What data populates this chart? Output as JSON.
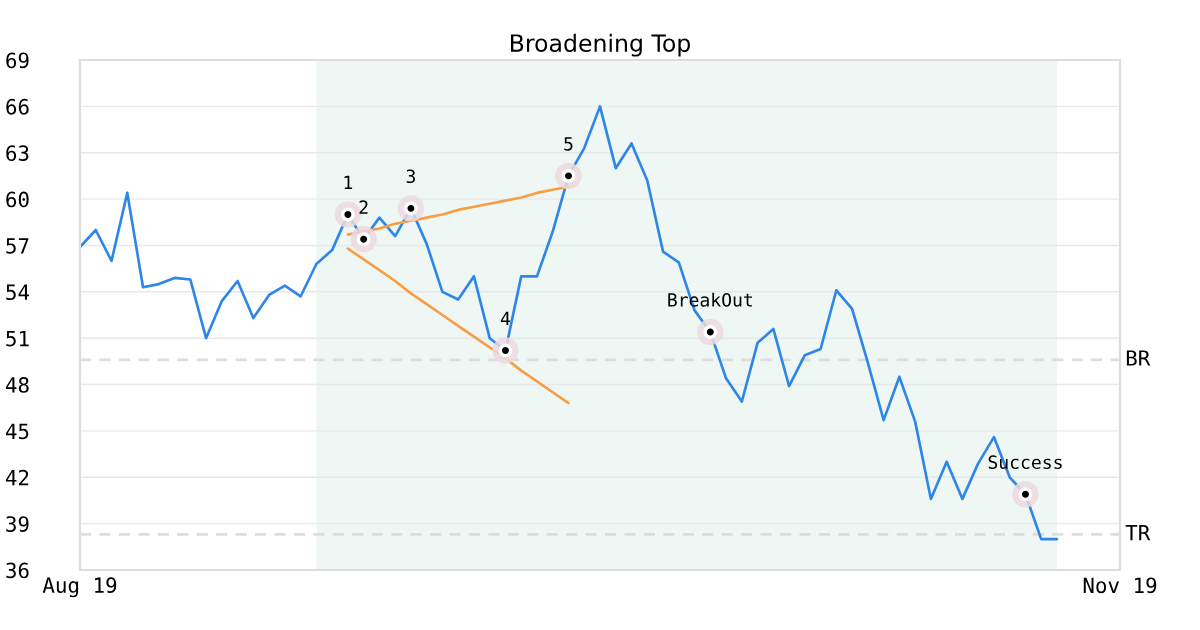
{
  "chart_data": {
    "type": "line",
    "title": "Broadening Top",
    "categories": [
      "Aug 19",
      null,
      null,
      null,
      null,
      null,
      null,
      null,
      null,
      null,
      null,
      null,
      null,
      null,
      null,
      null,
      null,
      null,
      null,
      null,
      null,
      null,
      null,
      null,
      null,
      null,
      null,
      null,
      null,
      null,
      null,
      null,
      null,
      null,
      null,
      null,
      null,
      null,
      null,
      null,
      null,
      null,
      null,
      null,
      null,
      null,
      null,
      null,
      null,
      null,
      null,
      null,
      null,
      null,
      null,
      null,
      null,
      null,
      null,
      null,
      null,
      null,
      null,
      null,
      null,
      null,
      "Nov 19"
    ],
    "ylim": [
      36,
      69
    ],
    "yticks": [
      36,
      39,
      42,
      45,
      48,
      51,
      54,
      57,
      60,
      63,
      66,
      69
    ],
    "grid": "y",
    "series": [
      {
        "color": "#2e86e8",
        "values": [
          56.9,
          58.0,
          56.0,
          60.4,
          54.3,
          54.5,
          54.9,
          54.8,
          51.0,
          53.4,
          54.7,
          52.3,
          53.8,
          54.4,
          53.7,
          55.8,
          56.7,
          59.0,
          57.4,
          58.8,
          57.6,
          59.4,
          57.1,
          54.0,
          53.5,
          55.0,
          51.0,
          50.2,
          55.0,
          55.0,
          57.9,
          61.5,
          63.3,
          66.0,
          62.0,
          63.6,
          61.2,
          56.6,
          55.9,
          52.8,
          51.4,
          48.4,
          46.9,
          50.7,
          51.6,
          47.9,
          49.9,
          50.3,
          54.1,
          52.9,
          49.4,
          45.7,
          48.5,
          45.6,
          40.6,
          43.0,
          40.6,
          42.9,
          44.6,
          42.0,
          40.9,
          38.0,
          38.0,
          null,
          null,
          null,
          null
        ]
      },
      {
        "type": "line",
        "color": "#f99d45",
        "values": [
          null,
          null,
          null,
          null,
          null,
          null,
          null,
          null,
          null,
          null,
          null,
          null,
          null,
          null,
          null,
          null,
          null,
          57.7,
          57.9,
          58.1,
          58.4,
          58.6,
          58.8,
          59.0,
          59.3,
          59.5,
          59.7,
          59.9,
          60.1,
          60.4,
          60.6,
          60.8,
          null,
          null,
          null,
          null,
          null,
          null,
          null,
          null,
          null,
          null,
          null,
          null,
          null,
          null,
          null,
          null,
          null,
          null,
          null,
          null,
          null,
          null,
          null,
          null,
          null,
          null,
          null,
          null,
          null,
          null,
          null,
          null,
          null,
          null,
          null
        ]
      },
      {
        "type": "line",
        "color": "#f99d45",
        "values": [
          null,
          null,
          null,
          null,
          null,
          null,
          null,
          null,
          null,
          null,
          null,
          null,
          null,
          null,
          null,
          null,
          null,
          56.8,
          56.1,
          55.4,
          54.7,
          53.9,
          53.2,
          52.5,
          51.8,
          51.1,
          50.4,
          49.7,
          48.9,
          48.2,
          47.5,
          46.8,
          null,
          null,
          null,
          null,
          null,
          null,
          null,
          null,
          null,
          null,
          null,
          null,
          null,
          null,
          null,
          null,
          null,
          null,
          null,
          null,
          null,
          null,
          null,
          null,
          null,
          null,
          null,
          null,
          null,
          null,
          null,
          null,
          null,
          null,
          null
        ]
      },
      {
        "type": "scatter",
        "color": "#000000",
        "marker": "circle",
        "values": [
          null,
          null,
          null,
          null,
          null,
          null,
          null,
          null,
          null,
          null,
          null,
          null,
          null,
          null,
          null,
          null,
          null,
          59.0,
          57.4,
          null,
          null,
          59.4,
          null,
          null,
          null,
          null,
          null,
          50.2,
          null,
          null,
          null,
          61.5,
          null,
          null,
          null,
          null,
          null,
          null,
          null,
          null,
          51.4,
          null,
          null,
          null,
          null,
          null,
          null,
          null,
          null,
          null,
          null,
          null,
          null,
          null,
          null,
          null,
          null,
          null,
          null,
          null,
          40.9,
          null,
          null,
          null,
          null,
          null,
          null
        ]
      }
    ],
    "ref_lines": [
      {
        "axis": "y",
        "value": 49.6,
        "label": "BR",
        "color": "#dddddd",
        "line_style": "dashed"
      },
      {
        "axis": "y",
        "value": 38.3,
        "label": "TR",
        "color": "#dddddd",
        "line_style": "dashed"
      }
    ],
    "annotations": [
      {
        "text": "1",
        "y": 59.0
      },
      {
        "text": "2",
        "y": 57.4
      },
      {
        "text": "3",
        "y": 59.4
      },
      {
        "text": "4",
        "y": 50.2
      },
      {
        "text": "5",
        "y": 61.5
      },
      {
        "text": "BreakOut",
        "y": 51.4
      },
      {
        "text": "Success",
        "y": 40.9
      }
    ]
  }
}
